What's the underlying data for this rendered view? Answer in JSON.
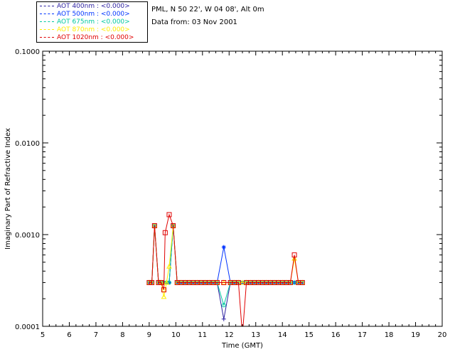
{
  "header": {
    "location": "PML, N 50 22', W 04 08', Alt 0m",
    "date_line": "Data from: 03 Nov 2001"
  },
  "chart_data": {
    "type": "line",
    "xlabel": "Time (GMT)",
    "ylabel": "Imaginary Part of Refractive Index",
    "xlim": [
      5,
      20
    ],
    "ylim": [
      0.0001,
      0.1
    ],
    "yscale": "log",
    "x_ticks": [
      "5",
      "6",
      "7",
      "8",
      "9",
      "10",
      "11",
      "12",
      "13",
      "14",
      "15",
      "16",
      "17",
      "18",
      "19",
      "20"
    ],
    "y_ticks": [
      "0.0001",
      "0.0010",
      "0.0100",
      "0.1000"
    ],
    "legend_position": "top-left, outside plot",
    "series": [
      {
        "name": "AOT  400nm : <0.000>",
        "color": "#2b1fa0",
        "marker": "plus",
        "points": [
          [
            9.0,
            0.0003
          ],
          [
            9.1,
            0.0003
          ],
          [
            9.2,
            0.00125
          ],
          [
            9.35,
            0.0003
          ],
          [
            9.45,
            0.0003
          ],
          [
            9.55,
            0.0003
          ],
          [
            9.65,
            0.0003
          ],
          [
            9.75,
            0.0003
          ],
          [
            9.9,
            0.00125
          ],
          [
            10.05,
            0.0003
          ],
          [
            10.2,
            0.0003
          ],
          [
            10.35,
            0.0003
          ],
          [
            10.5,
            0.0003
          ],
          [
            10.65,
            0.0003
          ],
          [
            10.8,
            0.0003
          ],
          [
            10.95,
            0.0003
          ],
          [
            11.1,
            0.0003
          ],
          [
            11.25,
            0.0003
          ],
          [
            11.4,
            0.0003
          ],
          [
            11.55,
            0.0003
          ],
          [
            11.8,
            0.00012
          ],
          [
            12.05,
            0.0003
          ],
          [
            12.2,
            0.0003
          ],
          [
            12.35,
            0.0003
          ],
          [
            12.5,
            0.0003
          ],
          [
            12.65,
            0.0003
          ],
          [
            12.8,
            0.0003
          ],
          [
            12.95,
            0.0003
          ],
          [
            13.1,
            0.0003
          ],
          [
            13.25,
            0.0003
          ],
          [
            13.4,
            0.0003
          ],
          [
            13.55,
            0.0003
          ],
          [
            13.7,
            0.0003
          ],
          [
            13.85,
            0.0003
          ],
          [
            14.0,
            0.0003
          ],
          [
            14.15,
            0.0003
          ],
          [
            14.3,
            0.0003
          ],
          [
            14.45,
            0.0003
          ],
          [
            14.6,
            0.0003
          ],
          [
            14.75,
            0.0003
          ]
        ]
      },
      {
        "name": "AOT  500nm : <0.000>",
        "color": "#0033ff",
        "marker": "star",
        "points": [
          [
            9.0,
            0.0003
          ],
          [
            9.1,
            0.0003
          ],
          [
            9.2,
            0.00125
          ],
          [
            9.35,
            0.0003
          ],
          [
            9.45,
            0.0003
          ],
          [
            9.55,
            0.0003
          ],
          [
            9.65,
            0.0003
          ],
          [
            9.75,
            0.0003
          ],
          [
            9.9,
            0.00125
          ],
          [
            10.05,
            0.0003
          ],
          [
            10.2,
            0.0003
          ],
          [
            10.35,
            0.0003
          ],
          [
            10.5,
            0.0003
          ],
          [
            10.65,
            0.0003
          ],
          [
            10.8,
            0.0003
          ],
          [
            10.95,
            0.0003
          ],
          [
            11.1,
            0.0003
          ],
          [
            11.25,
            0.0003
          ],
          [
            11.4,
            0.0003
          ],
          [
            11.55,
            0.0003
          ],
          [
            11.8,
            0.00073
          ],
          [
            12.05,
            0.0003
          ],
          [
            12.2,
            0.0003
          ],
          [
            12.35,
            0.0003
          ],
          [
            12.5,
            0.0003
          ],
          [
            12.65,
            0.0003
          ],
          [
            12.8,
            0.0003
          ],
          [
            12.95,
            0.0003
          ],
          [
            13.1,
            0.0003
          ],
          [
            13.25,
            0.0003
          ],
          [
            13.4,
            0.0003
          ],
          [
            13.55,
            0.0003
          ],
          [
            13.7,
            0.0003
          ],
          [
            13.85,
            0.0003
          ],
          [
            14.0,
            0.0003
          ],
          [
            14.15,
            0.0003
          ],
          [
            14.3,
            0.0003
          ],
          [
            14.45,
            0.0003
          ],
          [
            14.6,
            0.0003
          ],
          [
            14.75,
            0.0003
          ]
        ]
      },
      {
        "name": "AOT  675nm : <0.000>",
        "color": "#00c8a0",
        "marker": "circle",
        "points": [
          [
            9.0,
            0.0003
          ],
          [
            9.1,
            0.0003
          ],
          [
            9.2,
            0.00125
          ],
          [
            9.35,
            0.0003
          ],
          [
            9.45,
            0.0003
          ],
          [
            9.55,
            0.0003
          ],
          [
            9.65,
            0.0003
          ],
          [
            9.75,
            0.0003
          ],
          [
            9.9,
            0.00125
          ],
          [
            10.05,
            0.0003
          ],
          [
            10.2,
            0.0003
          ],
          [
            10.35,
            0.0003
          ],
          [
            10.5,
            0.0003
          ],
          [
            10.65,
            0.0003
          ],
          [
            10.8,
            0.0003
          ],
          [
            10.95,
            0.0003
          ],
          [
            11.1,
            0.0003
          ],
          [
            11.25,
            0.0003
          ],
          [
            11.4,
            0.0003
          ],
          [
            11.55,
            0.0003
          ],
          [
            11.8,
            0.00017
          ],
          [
            12.05,
            0.0003
          ],
          [
            12.2,
            0.0003
          ],
          [
            12.35,
            0.0003
          ],
          [
            12.5,
            0.0003
          ],
          [
            12.65,
            0.0003
          ],
          [
            12.8,
            0.0003
          ],
          [
            12.95,
            0.0003
          ],
          [
            13.1,
            0.0003
          ],
          [
            13.25,
            0.0003
          ],
          [
            13.4,
            0.0003
          ],
          [
            13.55,
            0.0003
          ],
          [
            13.7,
            0.0003
          ],
          [
            13.85,
            0.0003
          ],
          [
            14.0,
            0.0003
          ],
          [
            14.15,
            0.0003
          ],
          [
            14.3,
            0.0003
          ],
          [
            14.45,
            0.0003
          ],
          [
            14.6,
            0.0003
          ],
          [
            14.75,
            0.0003
          ]
        ]
      },
      {
        "name": "AOT  870nm : <0.000>",
        "color": "#ffee00",
        "marker": "triangle",
        "points": [
          [
            9.0,
            0.0003
          ],
          [
            9.1,
            0.0003
          ],
          [
            9.2,
            0.00125
          ],
          [
            9.35,
            0.0003
          ],
          [
            9.45,
            0.0003
          ],
          [
            9.55,
            0.00021
          ],
          [
            9.65,
            0.0003
          ],
          [
            9.75,
            0.00045
          ],
          [
            9.9,
            0.00125
          ],
          [
            10.05,
            0.0003
          ],
          [
            10.2,
            0.0003
          ],
          [
            10.35,
            0.0003
          ],
          [
            10.5,
            0.0003
          ],
          [
            10.65,
            0.0003
          ],
          [
            10.8,
            0.0003
          ],
          [
            10.95,
            0.0003
          ],
          [
            11.1,
            0.0003
          ],
          [
            11.25,
            0.0003
          ],
          [
            11.4,
            0.0003
          ],
          [
            11.55,
            0.0003
          ],
          [
            11.8,
            0.0003
          ],
          [
            12.05,
            0.0003
          ],
          [
            12.2,
            0.0003
          ],
          [
            12.35,
            0.0003
          ],
          [
            12.5,
            0.0003
          ],
          [
            12.65,
            0.0003
          ],
          [
            12.8,
            0.0003
          ],
          [
            12.95,
            0.0003
          ],
          [
            13.1,
            0.0003
          ],
          [
            13.25,
            0.0003
          ],
          [
            13.4,
            0.0003
          ],
          [
            13.55,
            0.0003
          ],
          [
            13.7,
            0.0003
          ],
          [
            13.85,
            0.0003
          ],
          [
            14.0,
            0.0003
          ],
          [
            14.15,
            0.0003
          ],
          [
            14.3,
            0.0003
          ],
          [
            14.45,
            0.00055
          ],
          [
            14.6,
            0.0003
          ],
          [
            14.75,
            0.0003
          ]
        ]
      },
      {
        "name": "AOT 1020nm : <0.000>",
        "color": "#e00000",
        "marker": "square",
        "points": [
          [
            9.0,
            0.0003
          ],
          [
            9.1,
            0.0003
          ],
          [
            9.2,
            0.00125
          ],
          [
            9.35,
            0.0003
          ],
          [
            9.45,
            0.0003
          ],
          [
            9.55,
            0.00025
          ],
          [
            9.6,
            0.00105
          ],
          [
            9.75,
            0.00165
          ],
          [
            9.9,
            0.00125
          ],
          [
            10.05,
            0.0003
          ],
          [
            10.2,
            0.0003
          ],
          [
            10.35,
            0.0003
          ],
          [
            10.5,
            0.0003
          ],
          [
            10.65,
            0.0003
          ],
          [
            10.8,
            0.0003
          ],
          [
            10.95,
            0.0003
          ],
          [
            11.1,
            0.0003
          ],
          [
            11.25,
            0.0003
          ],
          [
            11.4,
            0.0003
          ],
          [
            11.55,
            0.0003
          ],
          [
            11.8,
            0.0003
          ],
          [
            12.05,
            0.0003
          ],
          [
            12.2,
            0.0003
          ],
          [
            12.35,
            0.0003
          ],
          [
            12.5,
            8e-05
          ],
          [
            12.65,
            0.0003
          ],
          [
            12.8,
            0.0003
          ],
          [
            12.95,
            0.0003
          ],
          [
            13.1,
            0.0003
          ],
          [
            13.25,
            0.0003
          ],
          [
            13.4,
            0.0003
          ],
          [
            13.55,
            0.0003
          ],
          [
            13.7,
            0.0003
          ],
          [
            13.85,
            0.0003
          ],
          [
            14.0,
            0.0003
          ],
          [
            14.15,
            0.0003
          ],
          [
            14.3,
            0.0003
          ],
          [
            14.45,
            0.0006
          ],
          [
            14.6,
            0.0003
          ],
          [
            14.75,
            0.0003
          ]
        ]
      }
    ]
  }
}
